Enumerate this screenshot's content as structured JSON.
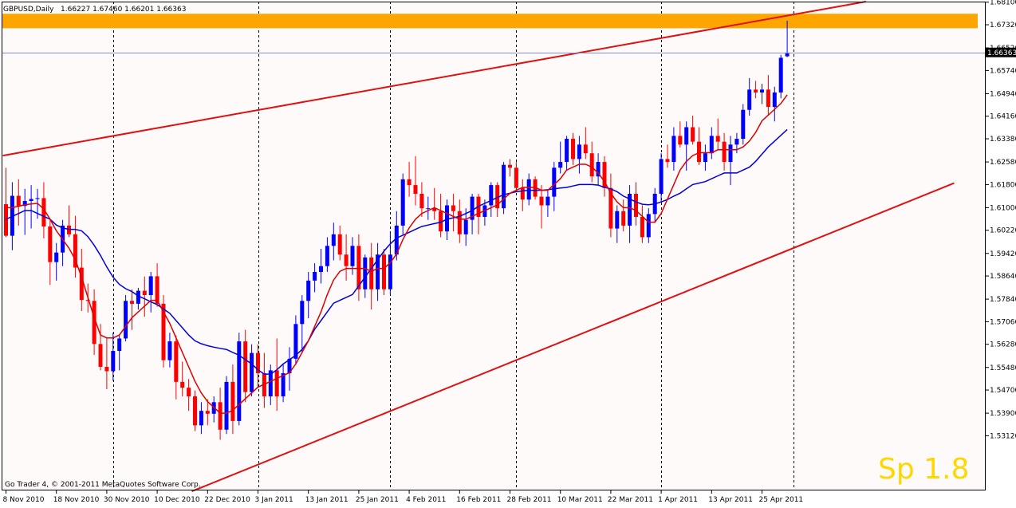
{
  "window": {
    "symbol_label": "GBPUSD,Daily",
    "ohlc_label": "1.66227 1.67460 1.66201 1.66363",
    "copyright": "Go Trader 4, © 2001-2011 MetaQuotes Software Corp.",
    "spread_label": "Sp 1.8"
  },
  "colors": {
    "background": "#fffafa",
    "frame": "#000000",
    "grid": "#000000",
    "bull": "#0000ff",
    "bear": "#ff0000",
    "ma_fast": "#dd0000",
    "ma_slow": "#0000dd",
    "channel": "#e01010",
    "zone": "#ffa500",
    "bid_line": "#7f8fd0",
    "price_tag_bg": "#000000",
    "price_tag_text": "#ffffff",
    "spread_text": "#ffd700"
  },
  "chart_data": {
    "type": "candlestick",
    "title": "GBPUSD,Daily",
    "ylim": [
      1.5123,
      1.6812
    ],
    "y_ticks": [
      "1.68100",
      "1.67320",
      "1.66520",
      "1.65740",
      "1.64940",
      "1.64160",
      "1.63380",
      "1.62580",
      "1.61800",
      "1.61000",
      "1.60220",
      "1.59420",
      "1.58640",
      "1.57840",
      "1.57060",
      "1.56280",
      "1.55480",
      "1.54700",
      "1.53900",
      "1.53120"
    ],
    "current_price": "1.66363",
    "x_labels": [
      "8 Nov 2010",
      "18 Nov 2010",
      "30 Nov 2010",
      "10 Dec 2010",
      "22 Dec 2010",
      "3 Jan 2011",
      "13 Jan 2011",
      "25 Jan 2011",
      "4 Feb 2011",
      "16 Feb 2011",
      "28 Feb 2011",
      "10 Mar 2011",
      "22 Mar 2011",
      "1 Apr 2011",
      "13 Apr 2011",
      "25 Apr 2011"
    ],
    "x_label_bars": [
      0,
      8,
      16,
      24,
      32,
      40,
      48,
      56,
      64,
      72,
      80,
      88,
      96,
      104,
      112,
      120
    ],
    "separator_bars": [
      17,
      40,
      61,
      81,
      104,
      125
    ],
    "candles": [
      {
        "o": 1.6112,
        "h": 1.6238,
        "l": 1.5998,
        "c": 1.6003
      },
      {
        "o": 1.6003,
        "h": 1.6188,
        "l": 1.5953,
        "c": 1.6141
      },
      {
        "o": 1.6141,
        "h": 1.6198,
        "l": 1.6038,
        "c": 1.6106
      },
      {
        "o": 1.6106,
        "h": 1.6165,
        "l": 1.6006,
        "c": 1.6123
      },
      {
        "o": 1.6123,
        "h": 1.6178,
        "l": 1.6028,
        "c": 1.613
      },
      {
        "o": 1.613,
        "h": 1.6165,
        "l": 1.6062,
        "c": 1.6133
      },
      {
        "o": 1.6133,
        "h": 1.6188,
        "l": 1.5994,
        "c": 1.6035
      },
      {
        "o": 1.6035,
        "h": 1.6058,
        "l": 1.5833,
        "c": 1.5912
      },
      {
        "o": 1.5912,
        "h": 1.5978,
        "l": 1.5848,
        "c": 1.5945
      },
      {
        "o": 1.5945,
        "h": 1.6058,
        "l": 1.5898,
        "c": 1.6038
      },
      {
        "o": 1.6038,
        "h": 1.6108,
        "l": 1.5998,
        "c": 1.6008
      },
      {
        "o": 1.6008,
        "h": 1.6072,
        "l": 1.5858,
        "c": 1.5893
      },
      {
        "o": 1.5893,
        "h": 1.5958,
        "l": 1.5743,
        "c": 1.5781
      },
      {
        "o": 1.5781,
        "h": 1.5838,
        "l": 1.5738,
        "c": 1.5778
      },
      {
        "o": 1.5778,
        "h": 1.5818,
        "l": 1.5591,
        "c": 1.5629
      },
      {
        "o": 1.5629,
        "h": 1.5698,
        "l": 1.5538,
        "c": 1.555
      },
      {
        "o": 1.555,
        "h": 1.5648,
        "l": 1.5473,
        "c": 1.5535
      },
      {
        "o": 1.5535,
        "h": 1.5668,
        "l": 1.5502,
        "c": 1.5605
      },
      {
        "o": 1.5605,
        "h": 1.5658,
        "l": 1.5538,
        "c": 1.5648
      },
      {
        "o": 1.5648,
        "h": 1.5798,
        "l": 1.5638,
        "c": 1.5778
      },
      {
        "o": 1.5778,
        "h": 1.5818,
        "l": 1.5678,
        "c": 1.5768
      },
      {
        "o": 1.5768,
        "h": 1.5823,
        "l": 1.5748,
        "c": 1.5813
      },
      {
        "o": 1.5813,
        "h": 1.5862,
        "l": 1.5723,
        "c": 1.5798
      },
      {
        "o": 1.5798,
        "h": 1.5878,
        "l": 1.5738,
        "c": 1.5863
      },
      {
        "o": 1.5863,
        "h": 1.5908,
        "l": 1.5758,
        "c": 1.5768
      },
      {
        "o": 1.5768,
        "h": 1.5798,
        "l": 1.5548,
        "c": 1.5573
      },
      {
        "o": 1.5573,
        "h": 1.5668,
        "l": 1.5548,
        "c": 1.5638
      },
      {
        "o": 1.5638,
        "h": 1.5658,
        "l": 1.5438,
        "c": 1.5498
      },
      {
        "o": 1.5498,
        "h": 1.5568,
        "l": 1.5448,
        "c": 1.5478
      },
      {
        "o": 1.5478,
        "h": 1.5508,
        "l": 1.5398,
        "c": 1.5448
      },
      {
        "o": 1.5448,
        "h": 1.5468,
        "l": 1.5328,
        "c": 1.5348
      },
      {
        "o": 1.5348,
        "h": 1.5428,
        "l": 1.5318,
        "c": 1.5398
      },
      {
        "o": 1.5398,
        "h": 1.5438,
        "l": 1.5348,
        "c": 1.5388
      },
      {
        "o": 1.5388,
        "h": 1.5448,
        "l": 1.5358,
        "c": 1.5428
      },
      {
        "o": 1.5428,
        "h": 1.5478,
        "l": 1.5298,
        "c": 1.5333
      },
      {
        "o": 1.5333,
        "h": 1.5518,
        "l": 1.5318,
        "c": 1.5498
      },
      {
        "o": 1.5498,
        "h": 1.5558,
        "l": 1.5318,
        "c": 1.5363
      },
      {
        "o": 1.5363,
        "h": 1.5668,
        "l": 1.5348,
        "c": 1.5638
      },
      {
        "o": 1.5638,
        "h": 1.5678,
        "l": 1.5428,
        "c": 1.5463
      },
      {
        "o": 1.5463,
        "h": 1.5628,
        "l": 1.5448,
        "c": 1.5598
      },
      {
        "o": 1.5598,
        "h": 1.5628,
        "l": 1.5478,
        "c": 1.5528
      },
      {
        "o": 1.5528,
        "h": 1.5598,
        "l": 1.5408,
        "c": 1.5448
      },
      {
        "o": 1.5448,
        "h": 1.5558,
        "l": 1.5418,
        "c": 1.5538
      },
      {
        "o": 1.5538,
        "h": 1.5648,
        "l": 1.5398,
        "c": 1.5448
      },
      {
        "o": 1.5448,
        "h": 1.5558,
        "l": 1.5428,
        "c": 1.5528
      },
      {
        "o": 1.5528,
        "h": 1.5618,
        "l": 1.5468,
        "c": 1.5578
      },
      {
        "o": 1.5578,
        "h": 1.5728,
        "l": 1.5558,
        "c": 1.5698
      },
      {
        "o": 1.5698,
        "h": 1.5798,
        "l": 1.5598,
        "c": 1.5778
      },
      {
        "o": 1.5778,
        "h": 1.5878,
        "l": 1.5718,
        "c": 1.5848
      },
      {
        "o": 1.5848,
        "h": 1.5908,
        "l": 1.5808,
        "c": 1.5878
      },
      {
        "o": 1.5878,
        "h": 1.5958,
        "l": 1.5838,
        "c": 1.5898
      },
      {
        "o": 1.5898,
        "h": 1.5998,
        "l": 1.5878,
        "c": 1.5968
      },
      {
        "o": 1.5968,
        "h": 1.6048,
        "l": 1.5918,
        "c": 1.6008
      },
      {
        "o": 1.6008,
        "h": 1.6038,
        "l": 1.5918,
        "c": 1.5938
      },
      {
        "o": 1.5938,
        "h": 1.6008,
        "l": 1.5848,
        "c": 1.5898
      },
      {
        "o": 1.5898,
        "h": 1.5998,
        "l": 1.5868,
        "c": 1.5968
      },
      {
        "o": 1.5968,
        "h": 1.6008,
        "l": 1.5778,
        "c": 1.5818
      },
      {
        "o": 1.5818,
        "h": 1.5938,
        "l": 1.5788,
        "c": 1.5928
      },
      {
        "o": 1.5928,
        "h": 1.5978,
        "l": 1.5748,
        "c": 1.5818
      },
      {
        "o": 1.5818,
        "h": 1.5978,
        "l": 1.5778,
        "c": 1.5938
      },
      {
        "o": 1.5938,
        "h": 1.5958,
        "l": 1.5798,
        "c": 1.5818
      },
      {
        "o": 1.5818,
        "h": 1.6018,
        "l": 1.5798,
        "c": 1.5938
      },
      {
        "o": 1.5938,
        "h": 1.6088,
        "l": 1.5918,
        "c": 1.6038
      },
      {
        "o": 1.6038,
        "h": 1.6218,
        "l": 1.6008,
        "c": 1.6198
      },
      {
        "o": 1.6198,
        "h": 1.6258,
        "l": 1.6138,
        "c": 1.6178
      },
      {
        "o": 1.6178,
        "h": 1.6278,
        "l": 1.6108,
        "c": 1.6148
      },
      {
        "o": 1.6148,
        "h": 1.6188,
        "l": 1.6068,
        "c": 1.6098
      },
      {
        "o": 1.6098,
        "h": 1.6138,
        "l": 1.6058,
        "c": 1.6098
      },
      {
        "o": 1.6098,
        "h": 1.6168,
        "l": 1.6058,
        "c": 1.6088
      },
      {
        "o": 1.6088,
        "h": 1.6148,
        "l": 1.5998,
        "c": 1.6018
      },
      {
        "o": 1.6018,
        "h": 1.6128,
        "l": 1.5988,
        "c": 1.6108
      },
      {
        "o": 1.6108,
        "h": 1.6148,
        "l": 1.6018,
        "c": 1.6088
      },
      {
        "o": 1.6088,
        "h": 1.6128,
        "l": 1.5978,
        "c": 1.6008
      },
      {
        "o": 1.6008,
        "h": 1.6098,
        "l": 1.5968,
        "c": 1.6058
      },
      {
        "o": 1.6058,
        "h": 1.6148,
        "l": 1.6008,
        "c": 1.6138
      },
      {
        "o": 1.6138,
        "h": 1.6148,
        "l": 1.6008,
        "c": 1.6068
      },
      {
        "o": 1.6068,
        "h": 1.6128,
        "l": 1.6038,
        "c": 1.6108
      },
      {
        "o": 1.6108,
        "h": 1.6188,
        "l": 1.6068,
        "c": 1.6178
      },
      {
        "o": 1.6178,
        "h": 1.6188,
        "l": 1.6068,
        "c": 1.6098
      },
      {
        "o": 1.6098,
        "h": 1.6258,
        "l": 1.6078,
        "c": 1.6248
      },
      {
        "o": 1.6248,
        "h": 1.6268,
        "l": 1.6208,
        "c": 1.6238
      },
      {
        "o": 1.6238,
        "h": 1.6258,
        "l": 1.6158,
        "c": 1.6168
      },
      {
        "o": 1.6168,
        "h": 1.6198,
        "l": 1.6088,
        "c": 1.6128
      },
      {
        "o": 1.6128,
        "h": 1.6218,
        "l": 1.6108,
        "c": 1.6198
      },
      {
        "o": 1.6198,
        "h": 1.6208,
        "l": 1.6128,
        "c": 1.6138
      },
      {
        "o": 1.6138,
        "h": 1.6178,
        "l": 1.6028,
        "c": 1.6108
      },
      {
        "o": 1.6108,
        "h": 1.6158,
        "l": 1.6068,
        "c": 1.6138
      },
      {
        "o": 1.6138,
        "h": 1.6258,
        "l": 1.6088,
        "c": 1.6238
      },
      {
        "o": 1.6238,
        "h": 1.6328,
        "l": 1.6218,
        "c": 1.6258
      },
      {
        "o": 1.6258,
        "h": 1.6348,
        "l": 1.6228,
        "c": 1.6338
      },
      {
        "o": 1.6338,
        "h": 1.6358,
        "l": 1.6248,
        "c": 1.6268
      },
      {
        "o": 1.6268,
        "h": 1.6348,
        "l": 1.6218,
        "c": 1.6318
      },
      {
        "o": 1.6318,
        "h": 1.6378,
        "l": 1.6268,
        "c": 1.6288
      },
      {
        "o": 1.6288,
        "h": 1.6328,
        "l": 1.6188,
        "c": 1.6208
      },
      {
        "o": 1.6208,
        "h": 1.6288,
        "l": 1.6178,
        "c": 1.6258
      },
      {
        "o": 1.6258,
        "h": 1.6278,
        "l": 1.6138,
        "c": 1.6168
      },
      {
        "o": 1.6168,
        "h": 1.6218,
        "l": 1.5998,
        "c": 1.6028
      },
      {
        "o": 1.6028,
        "h": 1.6108,
        "l": 1.5978,
        "c": 1.6088
      },
      {
        "o": 1.6088,
        "h": 1.6128,
        "l": 1.6018,
        "c": 1.6038
      },
      {
        "o": 1.6038,
        "h": 1.6178,
        "l": 1.5978,
        "c": 1.6148
      },
      {
        "o": 1.6148,
        "h": 1.6188,
        "l": 1.6038,
        "c": 1.6068
      },
      {
        "o": 1.6068,
        "h": 1.6108,
        "l": 1.5978,
        "c": 1.5998
      },
      {
        "o": 1.5998,
        "h": 1.6098,
        "l": 1.5978,
        "c": 1.6078
      },
      {
        "o": 1.6078,
        "h": 1.6168,
        "l": 1.6048,
        "c": 1.6148
      },
      {
        "o": 1.6148,
        "h": 1.6288,
        "l": 1.6118,
        "c": 1.6268
      },
      {
        "o": 1.6268,
        "h": 1.6318,
        "l": 1.6238,
        "c": 1.6258
      },
      {
        "o": 1.6258,
        "h": 1.6378,
        "l": 1.6228,
        "c": 1.6348
      },
      {
        "o": 1.6348,
        "h": 1.6398,
        "l": 1.6308,
        "c": 1.6318
      },
      {
        "o": 1.6318,
        "h": 1.6398,
        "l": 1.6228,
        "c": 1.6378
      },
      {
        "o": 1.6378,
        "h": 1.6418,
        "l": 1.6318,
        "c": 1.6328
      },
      {
        "o": 1.6328,
        "h": 1.6378,
        "l": 1.6248,
        "c": 1.6258
      },
      {
        "o": 1.6258,
        "h": 1.6318,
        "l": 1.6228,
        "c": 1.6288
      },
      {
        "o": 1.6288,
        "h": 1.6378,
        "l": 1.6268,
        "c": 1.6348
      },
      {
        "o": 1.6348,
        "h": 1.6408,
        "l": 1.6298,
        "c": 1.6328
      },
      {
        "o": 1.6328,
        "h": 1.6358,
        "l": 1.6228,
        "c": 1.6258
      },
      {
        "o": 1.6258,
        "h": 1.6348,
        "l": 1.6178,
        "c": 1.6318
      },
      {
        "o": 1.6318,
        "h": 1.6358,
        "l": 1.6288,
        "c": 1.6338
      },
      {
        "o": 1.6338,
        "h": 1.6458,
        "l": 1.6318,
        "c": 1.6438
      },
      {
        "o": 1.6438,
        "h": 1.6548,
        "l": 1.6418,
        "c": 1.6508
      },
      {
        "o": 1.6508,
        "h": 1.6538,
        "l": 1.6478,
        "c": 1.6498
      },
      {
        "o": 1.6498,
        "h": 1.6528,
        "l": 1.6458,
        "c": 1.6508
      },
      {
        "o": 1.6508,
        "h": 1.6558,
        "l": 1.6418,
        "c": 1.6448
      },
      {
        "o": 1.6448,
        "h": 1.6518,
        "l": 1.6398,
        "c": 1.6498
      },
      {
        "o": 1.6498,
        "h": 1.6628,
        "l": 1.6478,
        "c": 1.6618
      },
      {
        "o": 1.6623,
        "h": 1.6746,
        "l": 1.662,
        "c": 1.6636
      }
    ],
    "ma_fast": [
      1.61,
      1.61,
      1.6105,
      1.611,
      1.6113,
      1.6115,
      1.6095,
      1.606,
      1.602,
      1.599,
      1.596,
      1.592,
      1.586,
      1.579,
      1.572,
      1.566,
      1.565,
      1.565,
      1.566,
      1.569,
      1.572,
      1.574,
      1.576,
      1.578,
      1.578,
      1.574,
      1.57,
      1.565,
      1.56,
      1.555,
      1.55,
      1.546,
      1.543,
      1.541,
      1.539,
      1.539,
      1.54,
      1.542,
      1.544,
      1.546,
      1.548,
      1.549,
      1.55,
      1.551,
      1.552,
      1.553,
      1.556,
      1.56,
      1.564,
      1.569,
      1.574,
      1.58,
      1.585,
      1.588,
      1.589,
      1.589,
      1.589,
      1.589,
      1.588,
      1.589,
      1.589,
      1.591,
      1.594,
      1.599,
      1.603,
      1.606,
      1.608,
      1.609,
      1.61,
      1.609,
      1.608,
      1.607,
      1.606,
      1.606,
      1.607,
      1.608,
      1.609,
      1.61,
      1.611,
      1.613,
      1.615,
      1.616,
      1.617,
      1.617,
      1.617,
      1.616,
      1.616,
      1.618,
      1.62,
      1.623,
      1.624,
      1.625,
      1.625,
      1.624,
      1.622,
      1.619,
      1.615,
      1.612,
      1.61,
      1.61,
      1.609,
      1.607,
      1.605,
      1.605,
      1.608,
      1.613,
      1.618,
      1.623,
      1.626,
      1.628,
      1.629,
      1.629,
      1.629,
      1.63,
      1.63,
      1.63,
      1.63,
      1.631,
      1.633,
      1.636,
      1.64,
      1.642,
      1.644,
      1.646,
      1.649
    ],
    "ma_slow": [
      1.606,
      1.607,
      1.608,
      1.609,
      1.609,
      1.608,
      1.607,
      1.606,
      1.604,
      1.603,
      1.6025,
      1.6025,
      1.602,
      1.6,
      1.597,
      1.5935,
      1.5895,
      1.586,
      1.5835,
      1.582,
      1.581,
      1.5795,
      1.5785,
      1.5775,
      1.5765,
      1.575,
      1.5735,
      1.571,
      1.5685,
      1.566,
      1.564,
      1.563,
      1.5623,
      1.5618,
      1.5614,
      1.561,
      1.56,
      1.559,
      1.5575,
      1.556,
      1.554,
      1.5525,
      1.5525,
      1.554,
      1.556,
      1.5575,
      1.559,
      1.561,
      1.564,
      1.568,
      1.571,
      1.574,
      1.577,
      1.578,
      1.579,
      1.58,
      1.583,
      1.586,
      1.589,
      1.592,
      1.595,
      1.5975,
      1.5995,
      1.6005,
      1.6015,
      1.6025,
      1.6035,
      1.604,
      1.6045,
      1.605,
      1.606,
      1.6065,
      1.607,
      1.608,
      1.609,
      1.6105,
      1.6115,
      1.6125,
      1.6135,
      1.6145,
      1.615,
      1.6155,
      1.6158,
      1.616,
      1.616,
      1.616,
      1.6162,
      1.6165,
      1.6168,
      1.617,
      1.6175,
      1.618,
      1.618,
      1.618,
      1.6178,
      1.617,
      1.6165,
      1.6155,
      1.614,
      1.613,
      1.612,
      1.6112,
      1.611,
      1.6113,
      1.612,
      1.6128,
      1.614,
      1.615,
      1.6165,
      1.618,
      1.6185,
      1.619,
      1.62,
      1.621,
      1.622,
      1.622,
      1.622,
      1.623,
      1.624,
      1.626,
      1.6285,
      1.631,
      1.633,
      1.635,
      1.637
    ],
    "resistance_zone": {
      "top": 1.677,
      "bottom": 1.672
    },
    "channel_upper": [
      {
        "bar": -0.5,
        "price": 1.628
      },
      {
        "bar": 136.5,
        "price": 1.6812
      }
    ],
    "channel_lower": [
      {
        "bar": 29.5,
        "price": 1.512
      },
      {
        "bar": 150.5,
        "price": 1.6185
      }
    ]
  }
}
